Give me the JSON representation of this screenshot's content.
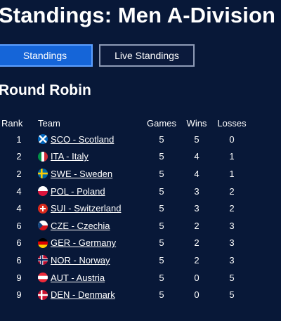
{
  "header": {
    "title": "Standings: Men A-Division"
  },
  "tabs": [
    {
      "label": "Standings",
      "active": true
    },
    {
      "label": "Live Standings",
      "active": false
    }
  ],
  "section": {
    "title": "Round Robin"
  },
  "table": {
    "headers": {
      "rank": "Rank",
      "team": "Team",
      "games": "Games",
      "wins": "Wins",
      "losses": "Losses"
    },
    "rows": [
      {
        "rank": "1",
        "team": "SCO - Scotland",
        "flag": "scotland-flag-icon",
        "games": "5",
        "wins": "5",
        "losses": "0"
      },
      {
        "rank": "2",
        "team": "ITA - Italy",
        "flag": "italy-flag-icon",
        "games": "5",
        "wins": "4",
        "losses": "1"
      },
      {
        "rank": "2",
        "team": "SWE - Sweden",
        "flag": "sweden-flag-icon",
        "games": "5",
        "wins": "4",
        "losses": "1"
      },
      {
        "rank": "4",
        "team": "POL - Poland",
        "flag": "poland-flag-icon",
        "games": "5",
        "wins": "3",
        "losses": "2"
      },
      {
        "rank": "4",
        "team": "SUI - Switzerland",
        "flag": "switzerland-flag-icon",
        "games": "5",
        "wins": "3",
        "losses": "2"
      },
      {
        "rank": "6",
        "team": "CZE - Czechia",
        "flag": "czechia-flag-icon",
        "games": "5",
        "wins": "2",
        "losses": "3"
      },
      {
        "rank": "6",
        "team": "GER - Germany",
        "flag": "germany-flag-icon",
        "games": "5",
        "wins": "2",
        "losses": "3"
      },
      {
        "rank": "6",
        "team": "NOR - Norway",
        "flag": "norway-flag-icon",
        "games": "5",
        "wins": "2",
        "losses": "3"
      },
      {
        "rank": "9",
        "team": "AUT - Austria",
        "flag": "austria-flag-icon",
        "games": "5",
        "wins": "0",
        "losses": "5"
      },
      {
        "rank": "9",
        "team": "DEN - Denmark",
        "flag": "denmark-flag-icon",
        "games": "5",
        "wins": "0",
        "losses": "5"
      }
    ]
  },
  "colors": {
    "background": "#081838",
    "active_tab": "#1565d8",
    "text": "#ffffff"
  }
}
